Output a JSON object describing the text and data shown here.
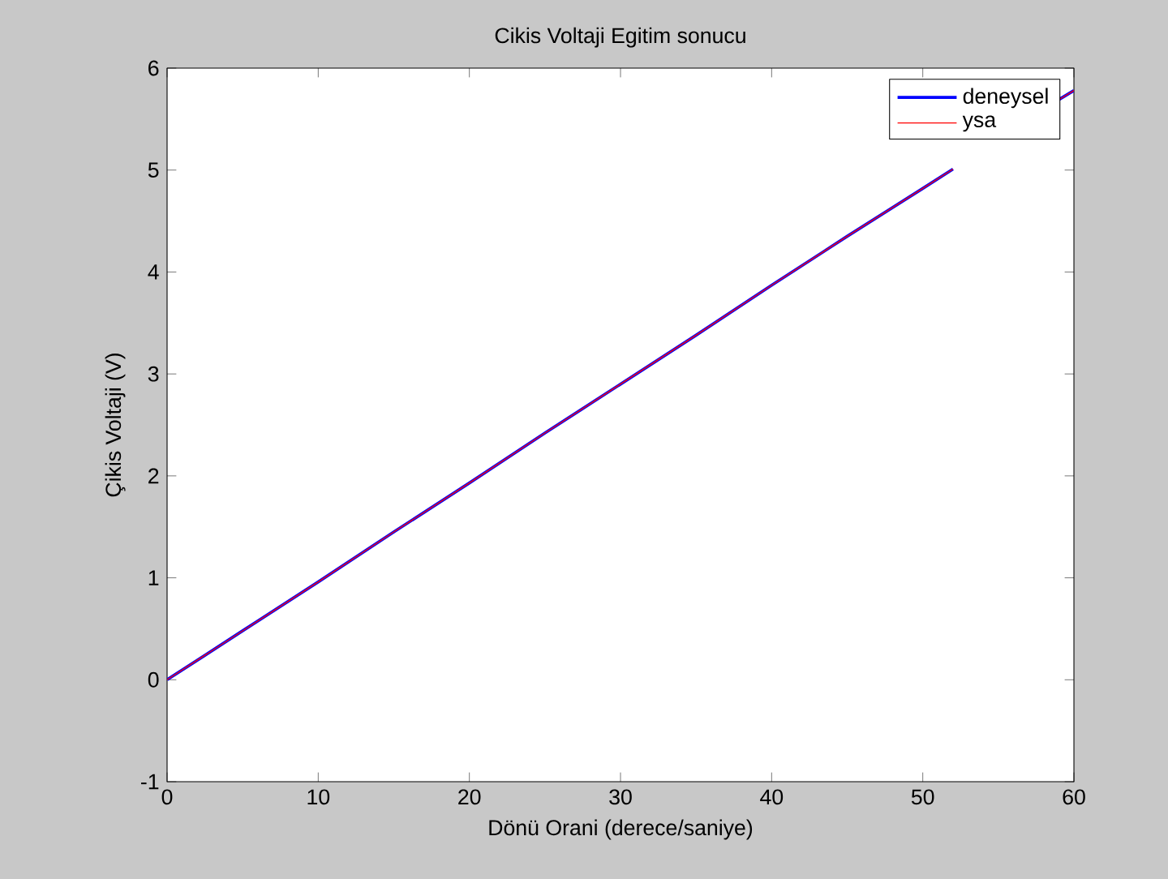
{
  "chart_data": {
    "type": "line",
    "title": "Cikis Voltaji Egitim sonucu",
    "xlabel": "Dönü Orani (derece/saniye)",
    "ylabel": "Çikis Voltaji (V)",
    "x": [
      0,
      5,
      10,
      15,
      20,
      25,
      30,
      35,
      40,
      45,
      50,
      52,
      56,
      59,
      60
    ],
    "series": [
      {
        "name": "deneysel",
        "color": "#0000ff",
        "values": [
          0,
          0.48,
          0.96,
          1.45,
          1.93,
          2.42,
          2.9,
          3.38,
          3.87,
          4.35,
          4.82,
          5.01,
          null,
          5.69,
          5.78
        ]
      },
      {
        "name": "ysa",
        "color": "#ff0000",
        "values": [
          0,
          0.48,
          0.96,
          1.45,
          1.93,
          2.42,
          2.9,
          3.38,
          3.87,
          4.35,
          4.82,
          5.01,
          null,
          5.69,
          5.78
        ]
      }
    ],
    "xlim": [
      0,
      60
    ],
    "ylim": [
      -1,
      6
    ],
    "xticks": [
      0,
      10,
      20,
      30,
      40,
      50,
      60
    ],
    "yticks": [
      -1,
      0,
      1,
      2,
      3,
      4,
      5,
      6
    ],
    "grid": false,
    "legend": "top right",
    "marker": "none",
    "line_style": "solid"
  }
}
